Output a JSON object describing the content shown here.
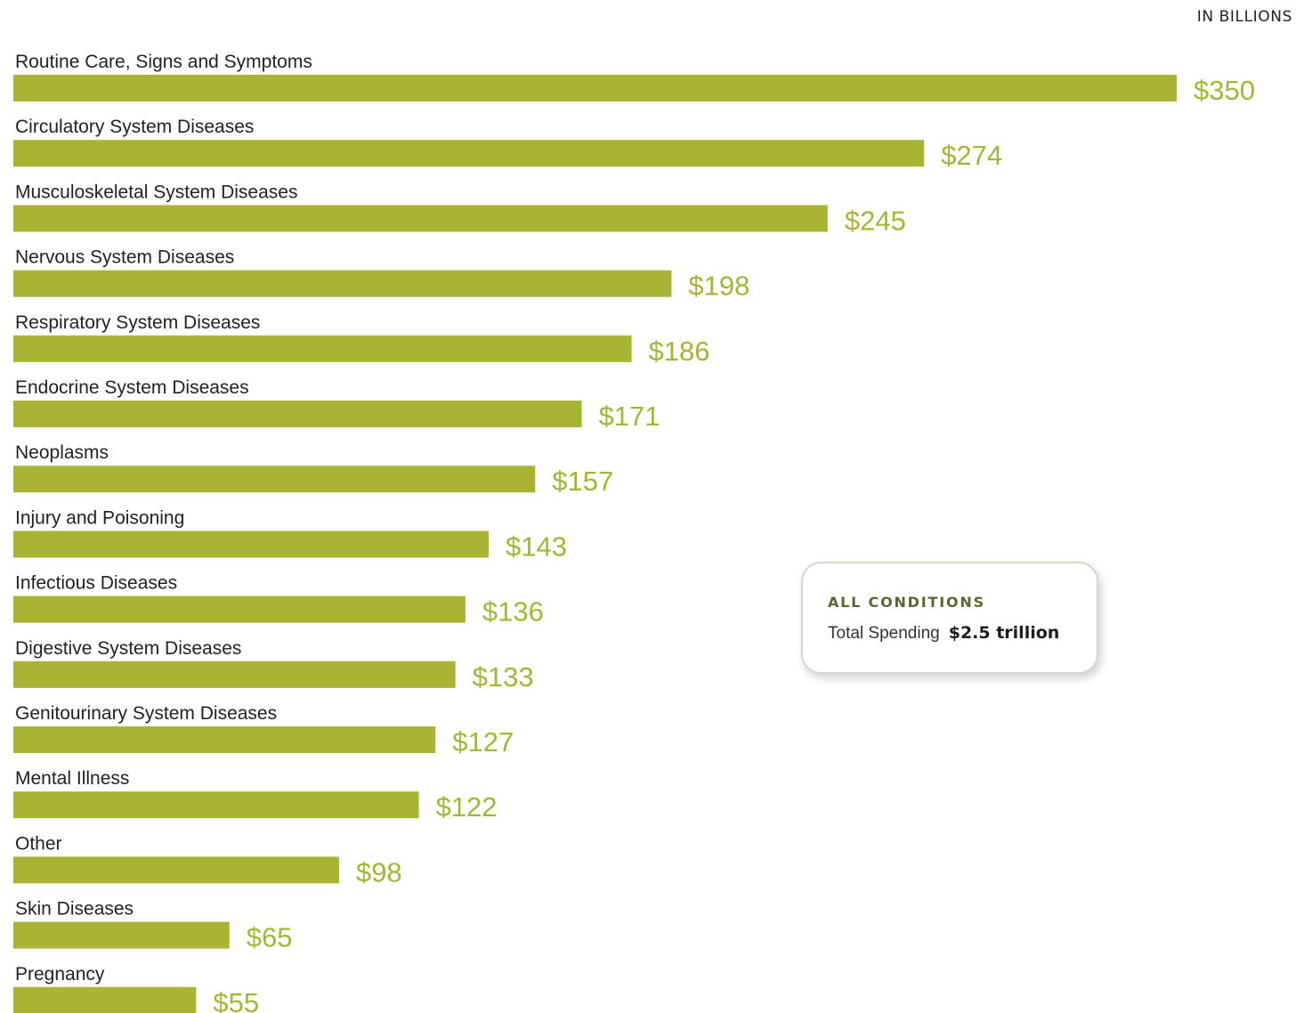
{
  "unit_label": "IN BILLIONS",
  "callout": {
    "title": "ALL CONDITIONS",
    "label": "Total Spending",
    "value": "$2.5 trillion"
  },
  "colors": {
    "bar": "#a8b434",
    "value_text": "#a8b434",
    "label_text": "#222222"
  },
  "chart_data": {
    "type": "bar",
    "orientation": "horizontal",
    "categories": [
      "Routine Care, Signs and Symptoms",
      "Circulatory System Diseases",
      "Musculoskeletal System Diseases",
      "Nervous System Diseases",
      "Respiratory System Diseases",
      "Endocrine System Diseases",
      "Neoplasms",
      "Injury and Poisoning",
      "Infectious Diseases",
      "Digestive System Diseases",
      "Genitourinary System Diseases",
      "Mental Illness",
      "Other",
      "Skin Diseases",
      "Pregnancy"
    ],
    "values": [
      350,
      274,
      245,
      198,
      186,
      171,
      157,
      143,
      136,
      133,
      127,
      122,
      98,
      65,
      55
    ],
    "value_labels": [
      "$350",
      "$274",
      "$245",
      "$198",
      "$186",
      "$171",
      "$157",
      "$143",
      "$136",
      "$133",
      "$127",
      "$122",
      "$98",
      "$65",
      "$55"
    ],
    "unit": "IN BILLIONS",
    "grid": false,
    "legend": "none"
  }
}
